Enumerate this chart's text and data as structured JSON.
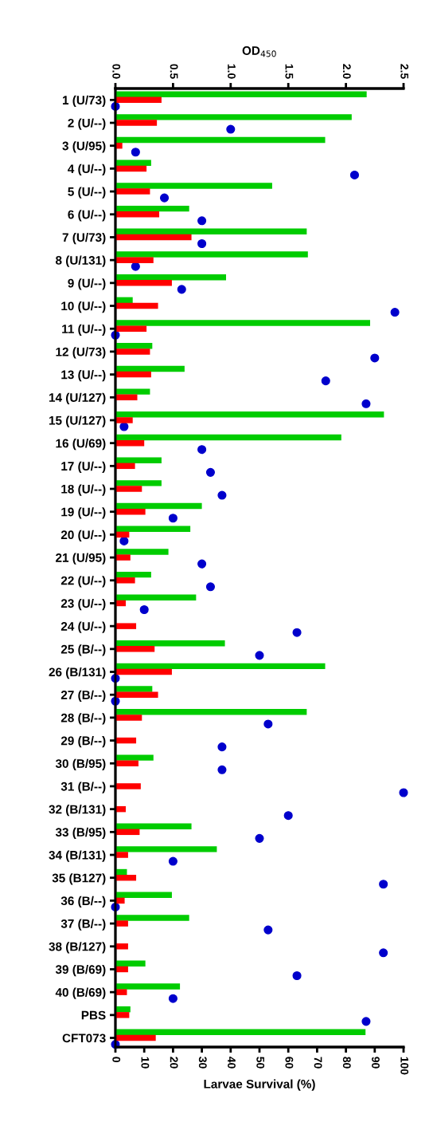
{
  "chart_data": {
    "type": "bar",
    "orientation": "horizontal",
    "xlabel": "Larvae Survival (%)",
    "x2label": "OD$_{450}$",
    "categories": [
      "1 (U/73)",
      "2 (U/--)",
      "3 (U/95)",
      "4 (U/--)",
      "5 (U/--)",
      "6 (U/--)",
      "7 (U/73)",
      "8 (U/131)",
      "9 (U/--)",
      "10 (U/--)",
      "11 (U/--)",
      "12 (U/73)",
      "13 (U/--)",
      "14 (U/127)",
      "15 (U/127)",
      "16 (U/69)",
      "17 (U/--)",
      "18 (U/--)",
      "19 (U/--)",
      "20 (U/--)",
      "21 (U/95)",
      "22 (U/--)",
      "23 (U/--)",
      "24 (U/--)",
      "25 (B/--)",
      "26 (B/131)",
      "27 (B/--)",
      "28 (B/--)",
      "29 (B/--)",
      "30 (B/95)",
      "31 (B/--)",
      "32 (B/131)",
      "33 (B/95)",
      "34 (B/131)",
      "35 (B127)",
      "36 (B/--)",
      "37 (B/--)",
      "38 (B/127)",
      "39 (B/69)",
      "40 (B/69)",
      "PBS",
      "CFT073"
    ],
    "series": [
      {
        "axis": "x2",
        "color": "#00cc00",
        "values": [
          2.18,
          2.05,
          1.82,
          0.31,
          1.36,
          0.64,
          1.66,
          1.67,
          0.96,
          0.15,
          2.21,
          0.32,
          0.6,
          0.3,
          2.33,
          1.96,
          0.4,
          0.4,
          0.75,
          0.65,
          0.46,
          0.31,
          0.7,
          null,
          0.95,
          1.82,
          0.32,
          1.66,
          null,
          0.33,
          null,
          null,
          0.66,
          0.88,
          0.1,
          0.49,
          0.64,
          null,
          0.26,
          0.56,
          0.13,
          2.17
        ]
      },
      {
        "axis": "x2",
        "color": "#ff0000",
        "values": [
          0.4,
          0.36,
          0.06,
          0.27,
          0.3,
          0.38,
          0.66,
          0.33,
          0.49,
          0.37,
          0.27,
          0.3,
          0.31,
          0.19,
          0.15,
          0.25,
          0.17,
          0.23,
          0.26,
          0.12,
          0.13,
          0.17,
          0.09,
          0.18,
          0.34,
          0.49,
          0.37,
          0.23,
          0.18,
          0.2,
          0.22,
          0.09,
          0.21,
          0.11,
          0.18,
          0.08,
          0.11,
          0.11,
          0.11,
          0.1,
          0.12,
          0.35
        ]
      },
      {
        "type": "scatter",
        "color": "#0000cc",
        "values": [
          0,
          40,
          7,
          83,
          17,
          30,
          30,
          7,
          23,
          97,
          0,
          90,
          73,
          87,
          3,
          30,
          33,
          37,
          20,
          3,
          30,
          33,
          10,
          63,
          50,
          0,
          0,
          53,
          37,
          37,
          100,
          60,
          50,
          20,
          93,
          0,
          53,
          93,
          63,
          20,
          87,
          0
        ]
      }
    ],
    "xlim": [
      0,
      100
    ],
    "xticks": [
      0,
      10,
      20,
      30,
      40,
      50,
      60,
      70,
      80,
      90,
      100
    ],
    "x2lim": [
      0,
      2.5
    ],
    "x2ticks": [
      {
        "value": 0,
        "label": "0.0"
      },
      0.5,
      {
        "value": 1,
        "label": "1.0"
      },
      1.5,
      {
        "value": 2,
        "label": "2.0"
      },
      2.5
    ],
    "marker": "circle",
    "grid": false
  }
}
